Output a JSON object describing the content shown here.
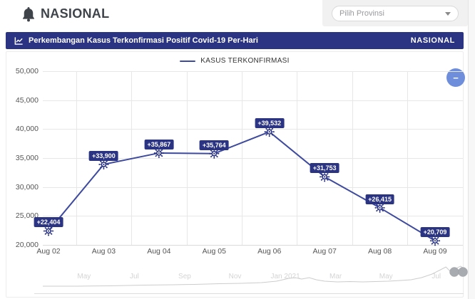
{
  "header": {
    "title": "NASIONAL",
    "province_placeholder": "Pilih Provinsi"
  },
  "banner": {
    "title": "Perkembangan Kasus Terkonfirmasi Positif Covid-19 Per-Hari",
    "region": "NASIONAL"
  },
  "controls": {
    "collapse_label": "−"
  },
  "chart_data": {
    "type": "line",
    "title": "Perkembangan Kasus Terkonfirmasi Positif Covid-19 Per-Hari",
    "legend": "KASUS TERKONFIRMASI",
    "legend_position": "top-center",
    "grid": true,
    "categories": [
      "Aug 02",
      "Aug 03",
      "Aug 04",
      "Aug 05",
      "Aug 06",
      "Aug 07",
      "Aug 08",
      "Aug 09"
    ],
    "values": [
      22404,
      33900,
      35867,
      35764,
      39532,
      31753,
      26415,
      20709
    ],
    "point_labels": [
      "+22,404",
      "+33,900",
      "+35,867",
      "+35,764",
      "+39,532",
      "+31,753",
      "+26,415",
      "+20,709"
    ],
    "ylim": [
      20000,
      50000
    ],
    "ytick_step": 5000,
    "ytick_labels": [
      "20,000",
      "25,000",
      "30,000",
      "35,000",
      "40,000",
      "45,000",
      "50,000"
    ],
    "series_color": "#3d4a9d",
    "marker_color": "#2b3483",
    "label_bg_color": "#2b3483",
    "navigator": {
      "months": [
        "May",
        "Jul",
        "Sep",
        "Nov",
        "Jan 2021",
        "Mar",
        "May",
        "Jul"
      ],
      "sparkline": [
        [
          0.0,
          1
        ],
        [
          0.08,
          1
        ],
        [
          0.16,
          1.5
        ],
        [
          0.24,
          2.5
        ],
        [
          0.31,
          3
        ],
        [
          0.36,
          3.5
        ],
        [
          0.42,
          4.5
        ],
        [
          0.47,
          5
        ],
        [
          0.52,
          6
        ],
        [
          0.555,
          8
        ],
        [
          0.585,
          12
        ],
        [
          0.6,
          13
        ],
        [
          0.615,
          11
        ],
        [
          0.633,
          13
        ],
        [
          0.65,
          10
        ],
        [
          0.67,
          8
        ],
        [
          0.7,
          7
        ],
        [
          0.73,
          7.5
        ],
        [
          0.76,
          7
        ],
        [
          0.79,
          7.5
        ],
        [
          0.82,
          8
        ],
        [
          0.85,
          9
        ],
        [
          0.875,
          10
        ],
        [
          0.9,
          13
        ],
        [
          0.925,
          18
        ],
        [
          0.945,
          24
        ],
        [
          0.958,
          28
        ],
        [
          0.968,
          22
        ],
        [
          0.976,
          19
        ],
        [
          0.985,
          27
        ],
        [
          0.993,
          29
        ],
        [
          1.0,
          26
        ]
      ]
    }
  }
}
